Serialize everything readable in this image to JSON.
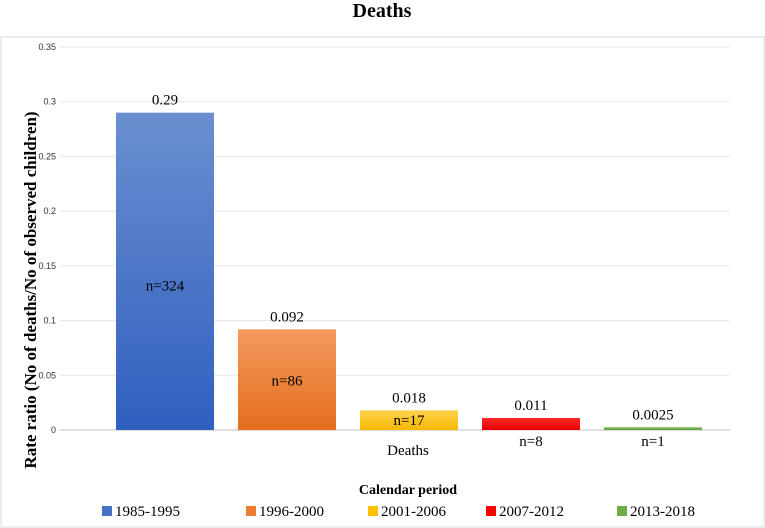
{
  "chart_data": {
    "type": "bar",
    "title": "Deaths",
    "xlabel": "Deaths",
    "ylabel": "Rate ratio (No of deaths/No of observed children)",
    "ylim": [
      0,
      0.35
    ],
    "yticks": [
      "0",
      "0.05",
      "0.1",
      "0.15",
      "0.2",
      "0.25",
      "0.3",
      "0.35"
    ],
    "grid": true,
    "legend_title": "Calendar period",
    "legend_position": "bottom",
    "series": [
      {
        "name": "1985-1995",
        "value": 0.29,
        "value_label": "0.29",
        "count_label": "n=324",
        "color": "#4472C4"
      },
      {
        "name": "1996-2000",
        "value": 0.092,
        "value_label": "0.092",
        "count_label": "n=86",
        "color": "#ED7D31"
      },
      {
        "name": "2001-2006",
        "value": 0.018,
        "value_label": "0.018",
        "count_label": "n=17",
        "color": "#FFC000"
      },
      {
        "name": "2007-2012",
        "value": 0.011,
        "value_label": "0.011",
        "count_label": "n=8",
        "color": "#FF0000"
      },
      {
        "name": "2013-2018",
        "value": 0.0025,
        "value_label": "0.0025",
        "count_label": "n=1",
        "color": "#70AD47"
      }
    ]
  }
}
